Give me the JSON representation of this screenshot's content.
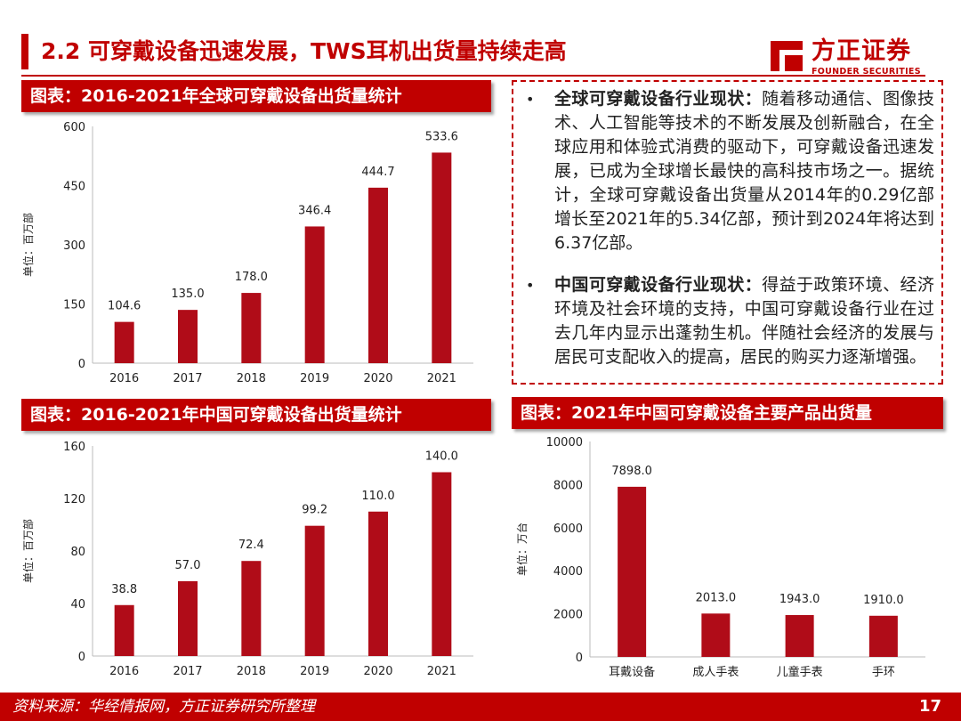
{
  "page": {
    "title": "2.2 可穿戴设备迅速发展，TWS耳机出货量持续走高",
    "page_number": "17",
    "source": "资料来源：华经情报网，方正证券研究所整理"
  },
  "logo": {
    "cn": "方正证券",
    "en": "FOUNDER SECURITIES"
  },
  "colors": {
    "accent": "#c00000",
    "bar": "#b00c18"
  },
  "text_box": {
    "items": [
      {
        "heading": "全球可穿戴设备行业现状：",
        "body": "随着移动通信、图像技术、人工智能等技术的不断发展及创新融合，在全球应用和体验式消费的驱动下，可穿戴设备迅速发展，已成为全球增长最快的高科技市场之一。据统计，全球可穿戴设备出货量从2014年的0.29亿部增长至2021年的5.34亿部，预计到2024年将达到6.37亿部。"
      },
      {
        "heading": "中国可穿戴设备行业现状：",
        "body": "得益于政策环境、经济环境及社会环境的支持，中国可穿戴设备行业在过去几年内显示出蓬勃生机。伴随社会经济的发展与居民可支配收入的提高，居民的购买力逐渐增强。"
      }
    ]
  },
  "chart_data": [
    {
      "type": "bar",
      "title": "图表：2016-2021年全球可穿戴设备出货量统计",
      "ylabel": "单位：百万部",
      "categories": [
        "2016",
        "2017",
        "2018",
        "2019",
        "2020",
        "2021"
      ],
      "values": [
        104.6,
        135.0,
        178.0,
        346.4,
        444.7,
        533.6
      ],
      "labels": [
        "104.6",
        "135.0",
        "178.0",
        "346.4",
        "444.7",
        "533.6"
      ],
      "ylim": [
        0,
        600
      ],
      "yticks": [
        0,
        150,
        300,
        450,
        600
      ],
      "ytick_labels": [
        "0",
        "150",
        "300",
        "450",
        "600"
      ],
      "grid": false,
      "legend": "none"
    },
    {
      "type": "bar",
      "title": "图表：2016-2021年中国可穿戴设备出货量统计",
      "ylabel": "单位：百万部",
      "categories": [
        "2016",
        "2017",
        "2018",
        "2019",
        "2020",
        "2021"
      ],
      "values": [
        38.8,
        57.0,
        72.4,
        99.2,
        110.0,
        140.0
      ],
      "labels": [
        "38.8",
        "57.0",
        "72.4",
        "99.2",
        "110.0",
        "140.0"
      ],
      "ylim": [
        0,
        160
      ],
      "yticks": [
        0,
        40,
        80,
        120,
        160
      ],
      "ytick_labels": [
        "0",
        "40",
        "80",
        "120",
        "160"
      ],
      "grid": false,
      "legend": "none"
    },
    {
      "type": "bar",
      "title": "图表：2021年中国可穿戴设备主要产品出货量",
      "ylabel": "单位：万台",
      "categories": [
        "耳戴设备",
        "成人手表",
        "儿童手表",
        "手环"
      ],
      "values": [
        7898.0,
        2013.0,
        1943.0,
        1910.0
      ],
      "labels": [
        "7898.0",
        "2013.0",
        "1943.0",
        "1910.0"
      ],
      "ylim": [
        0,
        10000
      ],
      "yticks": [
        0,
        2000,
        4000,
        6000,
        8000,
        10000
      ],
      "ytick_labels": [
        "0",
        "2000",
        "4000",
        "6000",
        "8000",
        "10000"
      ],
      "grid": false,
      "legend": "none"
    }
  ]
}
